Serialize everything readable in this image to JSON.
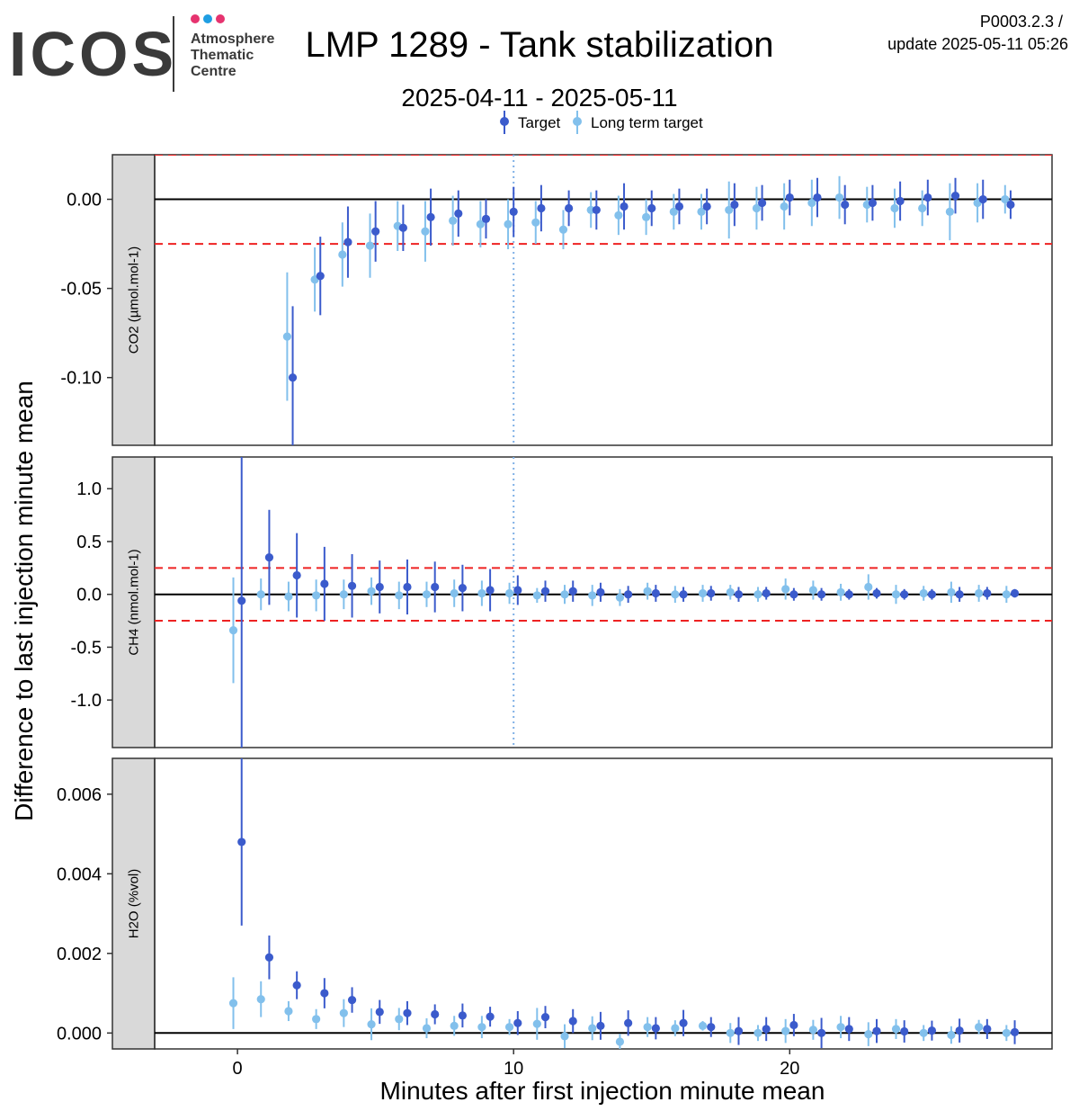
{
  "logo": {
    "brand": "ICOS",
    "line1": "Atmosphere",
    "line2": "Thematic",
    "line3": "Centre",
    "dot_colors": [
      "#e6336f",
      "#1f9ee2",
      "#e6336f"
    ]
  },
  "title": "LMP 1289 - Tank stabilization",
  "subtitle": "2025-04-11 - 2025-05-11",
  "header_right": {
    "line1": "P0003.2.3 /",
    "line2": "update  2025-05-11 05:26"
  },
  "legend": [
    {
      "label": "Target",
      "color": "#3b5bcc"
    },
    {
      "label": "Long term target",
      "color": "#82c0ec"
    }
  ],
  "chart_data": {
    "type": "scatter",
    "xlabel": "Minutes after first injection minute mean",
    "ylabel": "Difference to last injection minute mean",
    "xlim": [
      -3,
      29.5
    ],
    "x_ticks": [
      "0",
      "10",
      "20"
    ],
    "grid": false,
    "legend_position": "top",
    "vline_x": 10,
    "panels": [
      {
        "strip_label": "CO2 (µmol.mol-1)",
        "ylim": [
          -0.138,
          0.025
        ],
        "y_ticks": [
          "0.00",
          "-0.05",
          "-0.10"
        ],
        "tolerance": 0.025,
        "series": [
          {
            "name": "Target",
            "x": [
              2,
              3,
              4,
              5,
              6,
              7,
              8,
              9,
              10,
              11,
              12,
              13,
              14,
              15,
              16,
              17,
              18,
              19,
              20,
              21,
              22,
              23,
              24,
              25,
              26,
              27,
              28
            ],
            "y": [
              -0.1,
              -0.043,
              -0.024,
              -0.018,
              -0.016,
              -0.01,
              -0.008,
              -0.011,
              -0.007,
              -0.005,
              -0.005,
              -0.006,
              -0.004,
              -0.005,
              -0.004,
              -0.004,
              -0.003,
              -0.002,
              0.001,
              0.001,
              -0.003,
              -0.002,
              -0.001,
              0.001,
              0.002,
              0,
              -0.003
            ],
            "err": [
              0.04,
              0.022,
              0.02,
              0.017,
              0.013,
              0.016,
              0.013,
              0.011,
              0.014,
              0.013,
              0.01,
              0.011,
              0.013,
              0.01,
              0.01,
              0.01,
              0.012,
              0.01,
              0.01,
              0.011,
              0.011,
              0.01,
              0.011,
              0.01,
              0.01,
              0.011,
              0.008
            ]
          },
          {
            "name": "Long term target",
            "x": [
              1.8,
              2.8,
              3.8,
              4.8,
              5.8,
              6.8,
              7.8,
              8.8,
              9.8,
              10.8,
              11.8,
              12.8,
              13.8,
              14.8,
              15.8,
              16.8,
              17.8,
              18.8,
              19.8,
              20.8,
              21.8,
              22.8,
              23.8,
              24.8,
              25.8,
              26.8,
              27.8
            ],
            "y": [
              -0.077,
              -0.045,
              -0.031,
              -0.026,
              -0.015,
              -0.018,
              -0.012,
              -0.014,
              -0.014,
              -0.013,
              -0.017,
              -0.006,
              -0.009,
              -0.01,
              -0.007,
              -0.007,
              -0.006,
              -0.005,
              -0.004,
              -0.002,
              0.001,
              -0.003,
              -0.005,
              -0.005,
              -0.007,
              -0.002,
              0
            ],
            "err": [
              0.036,
              0.018,
              0.018,
              0.018,
              0.014,
              0.017,
              0.014,
              0.013,
              0.014,
              0.012,
              0.011,
              0.01,
              0.011,
              0.01,
              0.01,
              0.01,
              0.016,
              0.012,
              0.013,
              0.013,
              0.012,
              0.01,
              0.011,
              0.01,
              0.016,
              0.011,
              0.008
            ]
          }
        ]
      },
      {
        "strip_label": "CH4 (nmol.mol-1)",
        "ylim": [
          -1.45,
          1.3
        ],
        "y_ticks": [
          "1.0",
          "0.5",
          "0.0",
          "-0.5",
          "-1.0"
        ],
        "tolerance": 0.25,
        "series": [
          {
            "name": "Target",
            "x": [
              0.15,
              1.15,
              2.15,
              3.15,
              4.15,
              5.15,
              6.15,
              7.15,
              8.15,
              9.15,
              10.15,
              11.15,
              12.15,
              13.15,
              14.15,
              15.15,
              16.15,
              17.15,
              18.15,
              19.15,
              20.15,
              21.15,
              22.15,
              23.15,
              24.15,
              25.15,
              26.15,
              27.15,
              28.15
            ],
            "y": [
              -0.06,
              0.35,
              0.18,
              0.1,
              0.08,
              0.07,
              0.07,
              0.07,
              0.06,
              0.04,
              0.04,
              0.03,
              0.03,
              0.02,
              0.0,
              0.01,
              0.0,
              0.01,
              0.0,
              0.01,
              0.0,
              0.0,
              0.0,
              0.01,
              0.0,
              0.0,
              0.0,
              0.01,
              0.01
            ],
            "err": [
              1.45,
              0.45,
              0.4,
              0.35,
              0.3,
              0.25,
              0.26,
              0.24,
              0.22,
              0.2,
              0.14,
              0.1,
              0.1,
              0.09,
              0.08,
              0.08,
              0.07,
              0.07,
              0.07,
              0.06,
              0.06,
              0.06,
              0.05,
              0.05,
              0.05,
              0.05,
              0.07,
              0.06,
              0.04
            ]
          },
          {
            "name": "Long term target",
            "x": [
              -0.15,
              0.85,
              1.85,
              2.85,
              3.85,
              4.85,
              5.85,
              6.85,
              7.85,
              8.85,
              9.85,
              10.85,
              11.85,
              12.85,
              13.85,
              14.85,
              15.85,
              16.85,
              17.85,
              18.85,
              19.85,
              20.85,
              21.85,
              22.85,
              23.85,
              24.85,
              25.85,
              26.85,
              27.85
            ],
            "y": [
              -0.34,
              0.0,
              -0.02,
              -0.01,
              0.0,
              0.03,
              -0.01,
              0.0,
              0.01,
              0.01,
              0.01,
              -0.01,
              0.0,
              -0.01,
              -0.03,
              0.03,
              0.0,
              0.01,
              0.02,
              0.0,
              0.05,
              0.04,
              0.02,
              0.07,
              0.0,
              0.01,
              0.02,
              0.01,
              0.0
            ],
            "err": [
              0.5,
              0.15,
              0.14,
              0.15,
              0.14,
              0.13,
              0.13,
              0.12,
              0.13,
              0.12,
              0.1,
              0.07,
              0.09,
              0.1,
              0.08,
              0.08,
              0.08,
              0.08,
              0.07,
              0.07,
              0.1,
              0.09,
              0.08,
              0.12,
              0.09,
              0.07,
              0.1,
              0.08,
              0.08
            ]
          }
        ]
      },
      {
        "strip_label": "H2O (%vol)",
        "ylim": [
          -0.0004,
          0.0069
        ],
        "y_ticks": [
          "0.006",
          "0.004",
          "0.002",
          "0.000"
        ],
        "tolerance": null,
        "series": [
          {
            "name": "Target",
            "x": [
              0.15,
              1.15,
              2.15,
              3.15,
              4.15,
              5.15,
              6.15,
              7.15,
              8.15,
              9.15,
              10.15,
              11.15,
              12.15,
              13.15,
              14.15,
              15.15,
              16.15,
              17.15,
              18.15,
              19.15,
              20.15,
              21.15,
              22.15,
              23.15,
              24.15,
              25.15,
              26.15,
              27.15,
              28.15
            ],
            "y": [
              0.0048,
              0.0019,
              0.0012,
              0.001,
              0.00083,
              0.00053,
              0.0005,
              0.00047,
              0.00044,
              0.00041,
              0.00025,
              0.0004,
              0.0003,
              0.00018,
              0.00025,
              0.00012,
              0.00025,
              0.00015,
              5e-05,
              0.0001,
              0.0002,
              0.0,
              0.0001,
              5e-05,
              4e-05,
              6e-05,
              6e-05,
              0.0001,
              2e-05
            ],
            "err": [
              0.0021,
              0.00055,
              0.00035,
              0.00038,
              0.00032,
              0.0003,
              0.0003,
              0.00025,
              0.0003,
              0.00025,
              0.0003,
              0.00028,
              0.0003,
              0.00035,
              0.00032,
              0.00028,
              0.00033,
              0.00025,
              0.00035,
              0.0003,
              0.00028,
              0.00038,
              0.0003,
              0.0003,
              0.00028,
              0.00025,
              0.0003,
              0.00025,
              0.0003
            ]
          },
          {
            "name": "Long term target",
            "x": [
              -0.15,
              0.85,
              1.85,
              2.85,
              3.85,
              4.85,
              5.85,
              6.85,
              7.85,
              8.85,
              9.85,
              10.85,
              11.85,
              12.85,
              13.85,
              14.85,
              15.85,
              16.85,
              17.85,
              18.85,
              19.85,
              20.85,
              21.85,
              22.85,
              23.85,
              24.85,
              25.85,
              26.85,
              27.85
            ],
            "y": [
              0.00075,
              0.00085,
              0.00055,
              0.00035,
              0.0005,
              0.00022,
              0.00035,
              0.00012,
              0.00018,
              0.00015,
              0.00015,
              0.00023,
              -8e-05,
              0.00012,
              -0.00022,
              0.00015,
              0.00012,
              0.00018,
              0.0,
              0.0,
              5e-05,
              8e-05,
              0.00015,
              -3e-05,
              0.0001,
              0.0,
              -5e-05,
              0.00015,
              0.0
            ],
            "err": [
              0.00065,
              0.00045,
              0.00025,
              0.00025,
              0.00035,
              0.0004,
              0.00028,
              0.00025,
              0.00025,
              0.00028,
              0.0002,
              0.0004,
              0.0003,
              0.0003,
              0.0002,
              0.00025,
              0.0002,
              0.00012,
              0.00025,
              0.0002,
              0.0003,
              0.00025,
              0.00028,
              0.0003,
              0.00025,
              0.0002,
              0.00022,
              0.00018,
              0.0002
            ]
          }
        ]
      }
    ]
  }
}
